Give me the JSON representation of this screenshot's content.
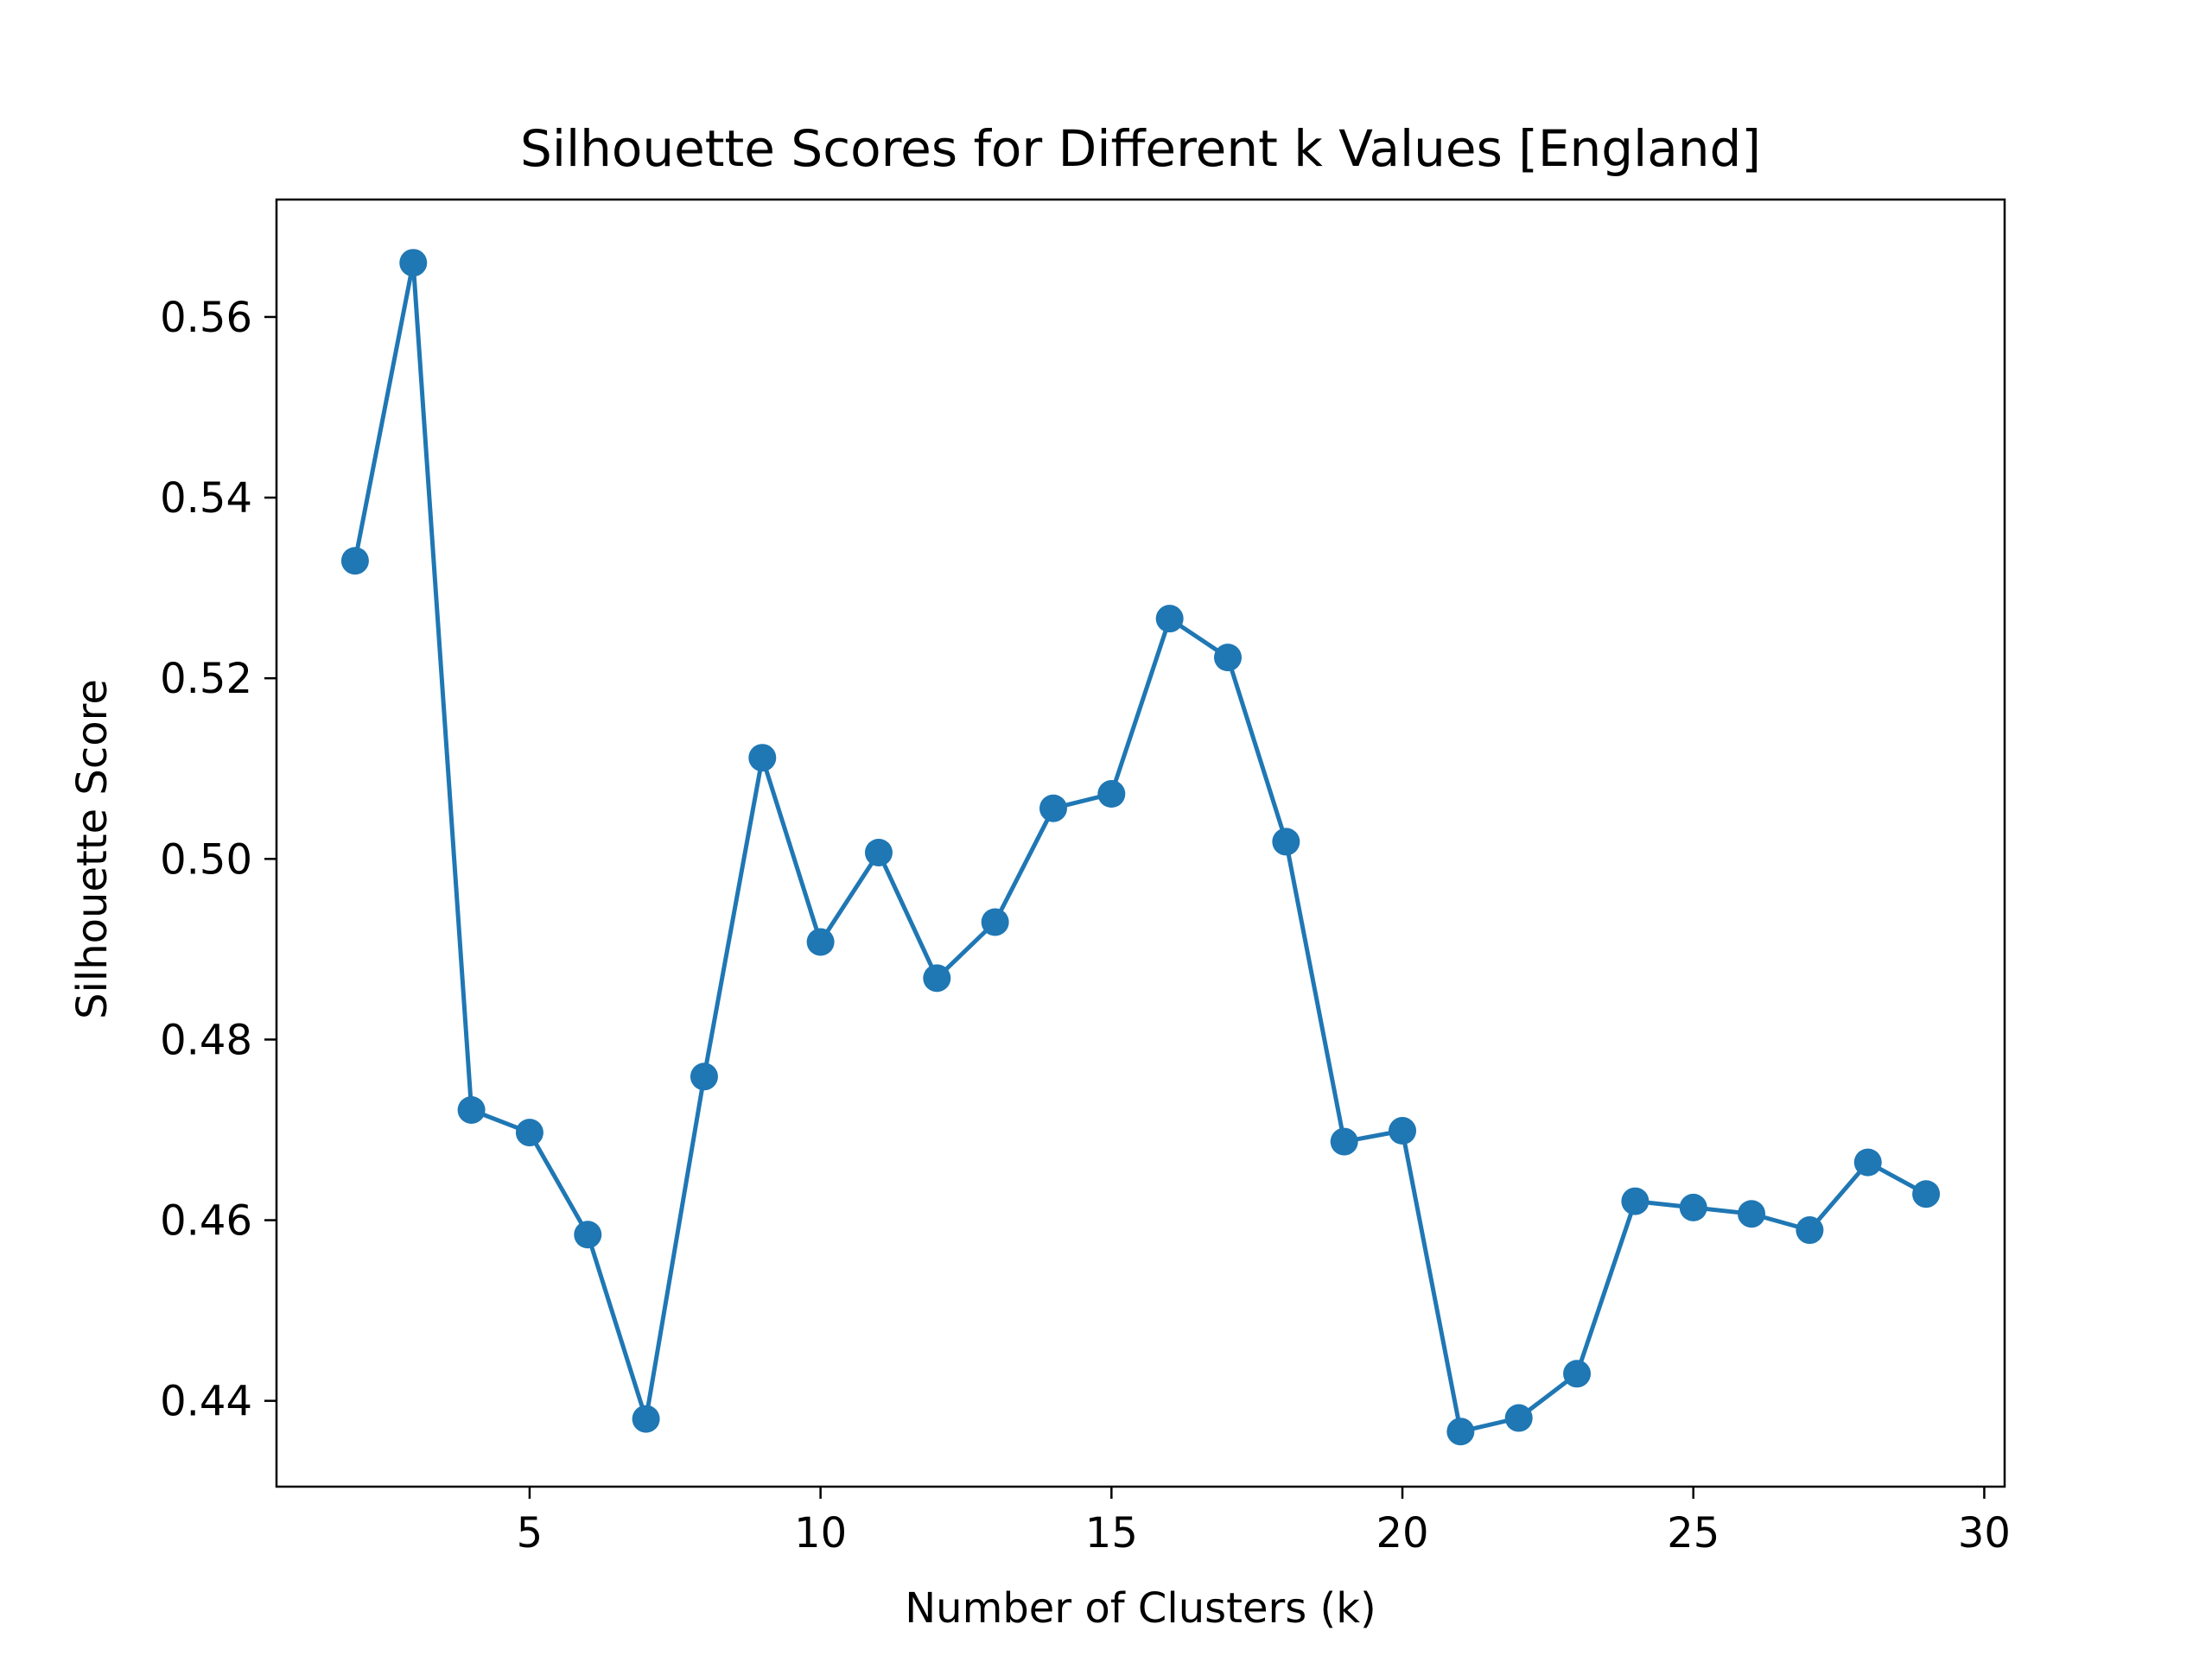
{
  "chart_data": {
    "type": "line",
    "title": "Silhouette Scores for Different k Values [England]",
    "xlabel": "Number of Clusters (k)",
    "ylabel": "Silhouette Score",
    "xlim": [
      0.65,
      30.35
    ],
    "ylim": [
      0.4305,
      0.573
    ],
    "xticks": [
      5,
      10,
      15,
      20,
      25,
      30
    ],
    "yticks": [
      0.44,
      0.46,
      0.48,
      0.5,
      0.52,
      0.54,
      0.56
    ],
    "xtick_labels": [
      "5",
      "10",
      "15",
      "20",
      "25",
      "30"
    ],
    "ytick_labels": [
      "0.44",
      "0.46",
      "0.48",
      "0.50",
      "0.52",
      "0.54",
      "0.56"
    ],
    "grid": false,
    "legend": false,
    "series": [
      {
        "color": "#1f77b4",
        "marker": "circle",
        "x": [
          2,
          3,
          4,
          5,
          6,
          7,
          8,
          9,
          10,
          11,
          12,
          13,
          14,
          15,
          16,
          17,
          18,
          19,
          20,
          21,
          22,
          23,
          24,
          25,
          26,
          27,
          28,
          29
        ],
        "y": [
          0.533,
          0.566,
          0.4722,
          0.4697,
          0.4584,
          0.438,
          0.4759,
          0.5112,
          0.4908,
          0.5007,
          0.4868,
          0.493,
          0.5056,
          0.5072,
          0.5266,
          0.5223,
          0.5019,
          0.4687,
          0.4699,
          0.4366,
          0.4381,
          0.443,
          0.4621,
          0.4614,
          0.4607,
          0.4589,
          0.4664,
          0.4629
        ]
      }
    ]
  }
}
